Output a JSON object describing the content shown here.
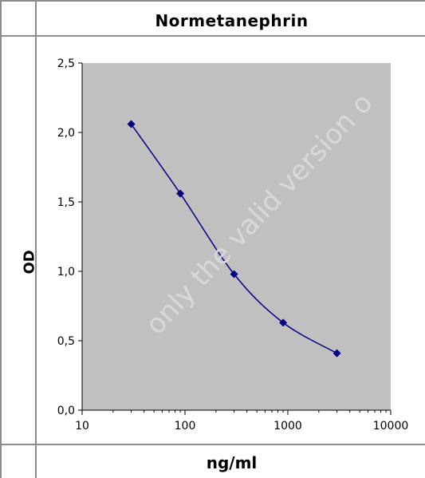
{
  "watermark": "only the valid version o",
  "chart_data": {
    "type": "line",
    "title": "Normetanephrin",
    "xlabel": "ng/ml",
    "ylabel": "OD",
    "x_scale": "log",
    "xlim": [
      10,
      10000
    ],
    "ylim": [
      0,
      2.5
    ],
    "x_ticks": [
      "10",
      "100",
      "1000",
      "10000"
    ],
    "y_ticks": [
      "0,0",
      "0,5",
      "1,0",
      "1,5",
      "2,0",
      "2,5"
    ],
    "grid": false,
    "plot_background": "#c0c0c0",
    "series": [
      {
        "color": "#000080",
        "smooth": true,
        "x": [
          30,
          90,
          300,
          900,
          3000
        ],
        "y": [
          2.06,
          1.56,
          0.98,
          0.63,
          0.41
        ]
      }
    ]
  }
}
